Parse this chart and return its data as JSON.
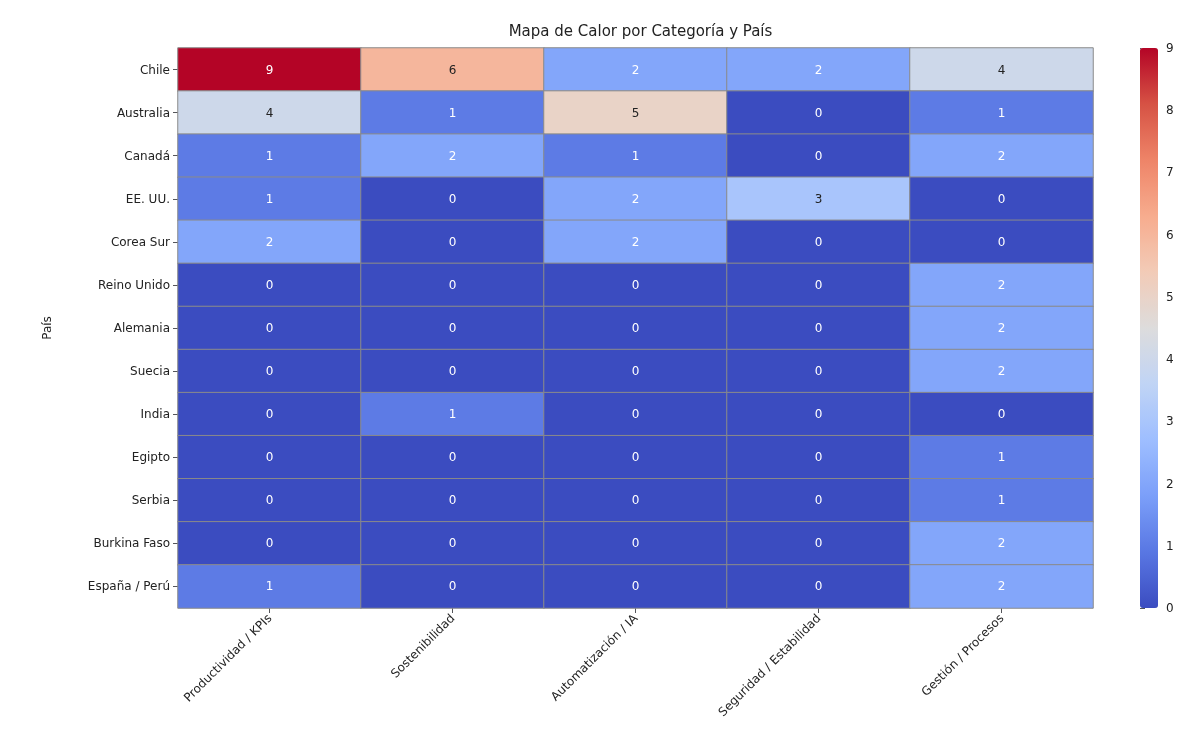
{
  "chart_data": {
    "type": "heatmap",
    "title": "Mapa de Calor por Categoría y País",
    "ylabel": "País",
    "categories": [
      "Productividad / KPIs",
      "Sostenibilidad",
      "Automatización / IA",
      "Seguridad / Estabilidad",
      "Gestión / Procesos"
    ],
    "y_categories": [
      "Chile",
      "Australia",
      "Canadá",
      "EE. UU.",
      "Corea Sur",
      "Reino Unido",
      "Alemania",
      "Suecia",
      "India",
      "Egipto",
      "Serbia",
      "Burkina Faso",
      "España / Perú"
    ],
    "cells": [
      [
        9,
        6,
        2,
        2,
        4
      ],
      [
        4,
        1,
        5,
        0,
        1
      ],
      [
        1,
        2,
        1,
        0,
        2
      ],
      [
        1,
        0,
        2,
        3,
        0
      ],
      [
        2,
        0,
        2,
        0,
        0
      ],
      [
        0,
        0,
        0,
        0,
        2
      ],
      [
        0,
        0,
        0,
        0,
        2
      ],
      [
        0,
        0,
        0,
        0,
        2
      ],
      [
        0,
        1,
        0,
        0,
        0
      ],
      [
        0,
        0,
        0,
        0,
        1
      ],
      [
        0,
        0,
        0,
        0,
        1
      ],
      [
        0,
        0,
        0,
        0,
        2
      ],
      [
        1,
        0,
        0,
        0,
        2
      ]
    ],
    "clim": [
      0,
      9
    ],
    "cticks": [
      0,
      1,
      2,
      3,
      4,
      5,
      6,
      7,
      8,
      9
    ],
    "data_labels": true
  }
}
